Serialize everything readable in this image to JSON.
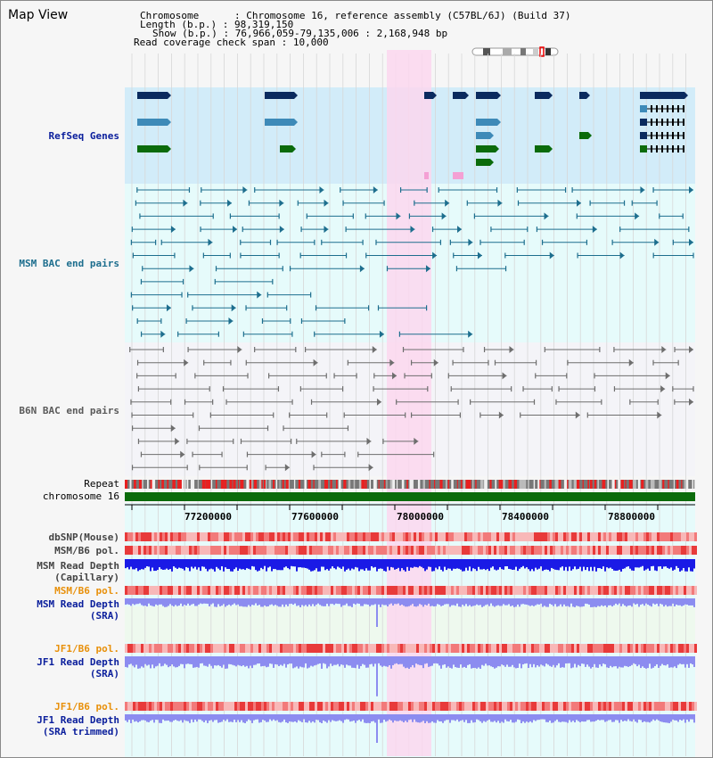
{
  "view_title": "Map View",
  "info": {
    "chromosome_label": "Chromosome",
    "chromosome_value": "Chromosome 16, reference assembly (C57BL/6J) (Build 37)",
    "length_label": "Length (b.p.)",
    "length_value": "98,319,150",
    "show_label": "Show (b.p.)",
    "show_value": "76,966,059-79,135,006 : 2,168,948 bp",
    "coverage_label": "Read coverage check span",
    "coverage_value": "10,000"
  },
  "tracks": {
    "refseq": "RefSeq Genes",
    "msm_bac": "MSM BAC end pairs",
    "b6n_bac": "B6N BAC end pairs",
    "repeat": "Repeat",
    "chromosome": "chromosome 16",
    "dbsnp": "dbSNP(Mouse)",
    "msm_b6_pol_1": "MSM/B6 pol.",
    "msm_depth_cap_1": "MSM Read Depth",
    "msm_depth_cap_2": "(Capillary)",
    "msm_b6_pol_2": "MSM/B6 pol.",
    "msm_depth_sra_1": "MSM Read Depth",
    "msm_depth_sra_2": "(SRA)",
    "jf1_b6_pol_1": "JF1/B6 pol.",
    "jf1_depth_sra_1": "JF1 Read Depth",
    "jf1_depth_sra_2": "(SRA)",
    "jf1_b6_pol_2": "JF1/B6 pol.",
    "jf1_depth_trim_1": "JF1 Read Depth",
    "jf1_depth_trim_2": "(SRA trimmed)"
  },
  "axis_ticks": [
    "77200000",
    "77600000",
    "78000000",
    "78400000",
    "78800000"
  ],
  "colors": {
    "refseq_dark": "#0a2a5e",
    "refseq_mid": "#3e8ab8",
    "refseq_green": "#0b6b0b",
    "msm_bac": "#1d6e8e",
    "b6n_bac": "#6e6e6e",
    "highlight": "#fbd7ef",
    "depth_cap": "#1a1ae6",
    "depth_sra": "#8c8cf0",
    "pol": "#ec4a4a"
  }
}
